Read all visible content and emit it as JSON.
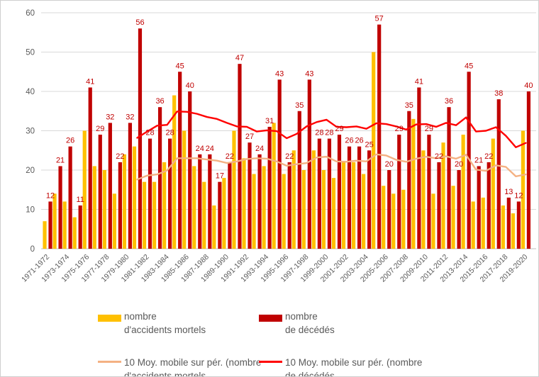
{
  "chart_data": {
    "type": "bar",
    "subtype": "clustered bars with two moving-average lines",
    "title": "",
    "xlabel": "",
    "ylabel": "",
    "ylim": [
      0,
      60
    ],
    "yticks": [
      0,
      10,
      20,
      30,
      40,
      50,
      60
    ],
    "grid": true,
    "legend_position": "bottom",
    "categories": [
      "1971-1972",
      "1972-1973",
      "1973-1974",
      "1974-1975",
      "1975-1976",
      "1976-1977",
      "1977-1978",
      "1978-1979",
      "1979-1980",
      "1980-1981",
      "1981-1982",
      "1982-1983",
      "1983-1984",
      "1984-1985",
      "1985-1986",
      "1986-1987",
      "1987-1988",
      "1988-1989",
      "1989-1990",
      "1990-1991",
      "1991-1992",
      "1992-1993",
      "1993-1994",
      "1994-1995",
      "1995-1996",
      "1996-1997",
      "1997-1998",
      "1998-1999",
      "1999-2000",
      "2000-2001",
      "2001-2002",
      "2002-2003",
      "2003-2004",
      "2004-2005",
      "2005-2006",
      "2006-2007",
      "2007-2008",
      "2008-2009",
      "2009-2010",
      "2010-2011",
      "2011-2012",
      "2012-2013",
      "2013-2014",
      "2014-2015",
      "2015-2016",
      "2016-2017",
      "2017-2018",
      "2018-2019",
      "2019-2020"
    ],
    "x_tick_labels_shown": [
      "1971-1972",
      "1973-1974",
      "1975-1976",
      "1977-1978",
      "1979-1980",
      "1981-1982",
      "1983-1984",
      "1985-1986",
      "1987-1988",
      "1989-1990",
      "1991-1992",
      "1993-1994",
      "1995-1996",
      "1997-1998",
      "1999-2000",
      "2001-2002",
      "2003-2004",
      "2005-2006",
      "2007-2008",
      "2009-2010",
      "2011-2012",
      "2013-2014",
      "2015-2016",
      "2017-2018",
      "2019-2020"
    ],
    "series": [
      {
        "name": "nombre d'accidents mortels",
        "type": "bar",
        "color": "#FFC000",
        "data_labels": false,
        "values": [
          7,
          14,
          12,
          8,
          30,
          21,
          20,
          14,
          24,
          26,
          17,
          17,
          22,
          39,
          30,
          21,
          17,
          11,
          18,
          30,
          23,
          19,
          21,
          32,
          19,
          25,
          20,
          25,
          20,
          18,
          22,
          22,
          19,
          50,
          16,
          14,
          15,
          33,
          25,
          14,
          27,
          16,
          29,
          12,
          13,
          28,
          11,
          9,
          30
        ]
      },
      {
        "name": "nombre de décédés",
        "type": "bar",
        "color": "#C00000",
        "data_labels": true,
        "data_label_color": "#C00000",
        "values": [
          12,
          21,
          26,
          11,
          41,
          29,
          32,
          22,
          32,
          56,
          28,
          36,
          28,
          45,
          40,
          24,
          24,
          17,
          22,
          47,
          27,
          24,
          31,
          43,
          22,
          35,
          43,
          28,
          28,
          29,
          26,
          26,
          25,
          57,
          20,
          29,
          35,
          41,
          29,
          22,
          36,
          20,
          45,
          21,
          22,
          38,
          13,
          12,
          40
        ]
      },
      {
        "name": "10 Moy. mobile sur pér. (nombre d'accidents mortels",
        "type": "line",
        "color": "#F4B183",
        "period": 10,
        "start_index": 9,
        "values": [
          17.6,
          18.6,
          18.9,
          19.9,
          23.0,
          23.0,
          23.0,
          22.7,
          22.4,
          21.8,
          22.2,
          22.8,
          23.0,
          22.9,
          22.2,
          21.1,
          21.5,
          21.8,
          23.2,
          23.4,
          22.2,
          22.1,
          22.4,
          22.2,
          24.0,
          23.7,
          22.6,
          22.1,
          22.9,
          23.4,
          23.0,
          23.5,
          22.9,
          23.9,
          20.1,
          19.8,
          21.2,
          20.8,
          18.4,
          18.9
        ]
      },
      {
        "name": "10 Moy. mobile sur pér. (nombre de décédés",
        "type": "line",
        "color": "#FF0000",
        "period": 10,
        "start_index": 9,
        "values": [
          28.2,
          29.8,
          31.3,
          31.5,
          34.9,
          34.8,
          34.3,
          33.5,
          33.0,
          32.0,
          31.1,
          31.0,
          29.8,
          30.1,
          29.9,
          28.1,
          29.2,
          31.1,
          32.2,
          32.8,
          31.0,
          30.9,
          31.1,
          30.5,
          31.9,
          31.7,
          31.1,
          30.3,
          31.6,
          31.7,
          31.0,
          32.0,
          31.4,
          33.4,
          29.8,
          30.0,
          30.9,
          28.7,
          25.8,
          26.9
        ]
      }
    ]
  },
  "legend": {
    "rows": [
      [
        {
          "swatch": "bar",
          "color": "#FFC000",
          "line1": "nombre",
          "line2": "d'accidents mortels"
        },
        {
          "swatch": "bar",
          "color": "#C00000",
          "line1": "nombre",
          "line2": "de décédés"
        }
      ],
      [
        {
          "swatch": "line",
          "color": "#F4B183",
          "line1": "10 Moy. mobile sur pér. (nombre",
          "line2": "d'accidents mortels"
        },
        {
          "swatch": "line",
          "color": "#FF0000",
          "line1": "10 Moy. mobile sur pér. (nombre",
          "line2": "de décédés"
        }
      ]
    ]
  },
  "colors": {
    "axis_text": "#595959",
    "gridline": "#D9D9D9",
    "data_label": "#C00000",
    "background": "#FFFFFF"
  }
}
